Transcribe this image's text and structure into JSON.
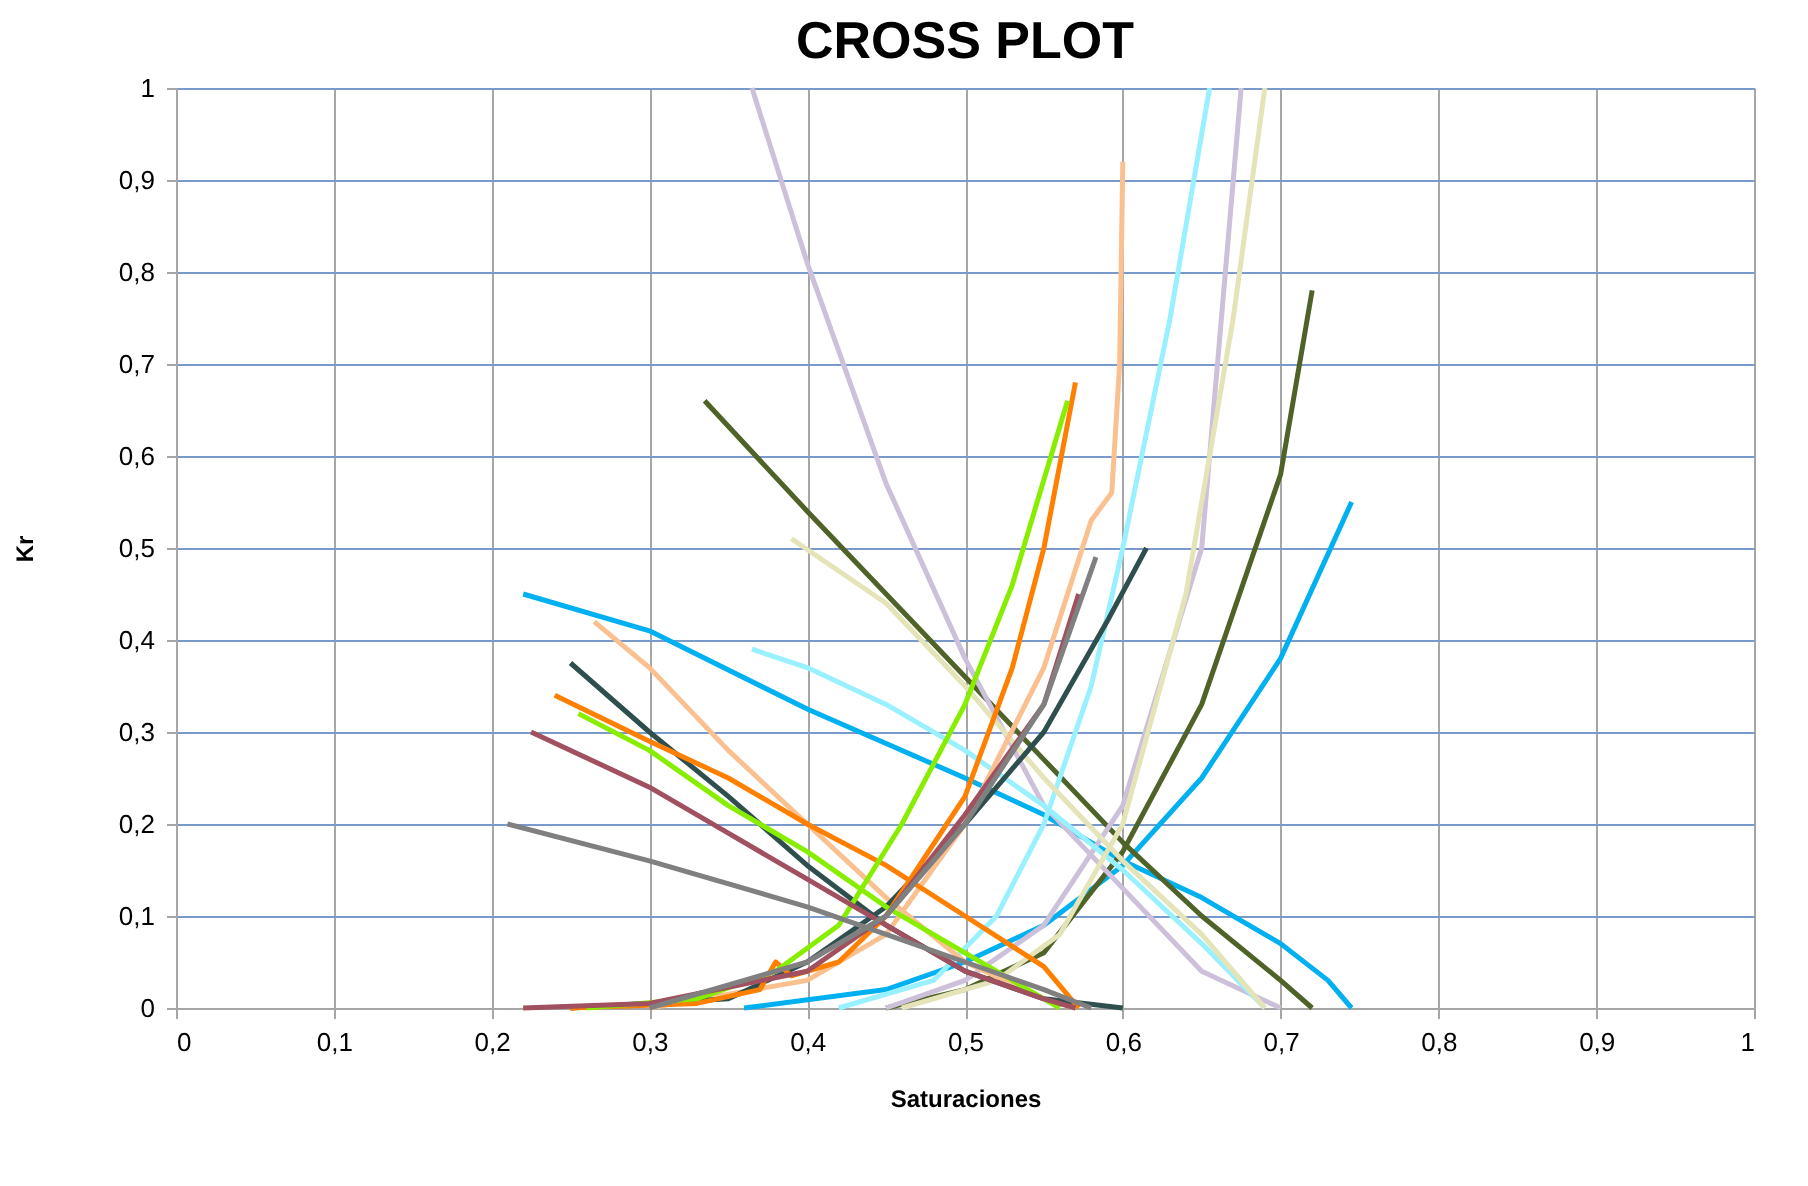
{
  "chart_data": {
    "type": "line",
    "title": "CROSS PLOT",
    "xlabel": "Saturaciones",
    "ylabel": "Kr",
    "grid": true,
    "legend": false,
    "marker": "none",
    "line_style": "solid",
    "xlim": [
      0,
      1
    ],
    "ylim": [
      0,
      1
    ],
    "xticks": [
      0,
      {
        "value": 0.1,
        "label": "0,1"
      },
      {
        "value": 0.2,
        "label": "0,2"
      },
      {
        "value": 0.3,
        "label": "0,3"
      },
      {
        "value": 0.4,
        "label": "0,4"
      },
      {
        "value": 0.5,
        "label": "0,5"
      },
      {
        "value": 0.6,
        "label": "0,6"
      },
      {
        "value": 0.7,
        "label": "0,7"
      },
      {
        "value": 0.8,
        "label": "0,8"
      },
      {
        "value": 0.9,
        "label": "0,9"
      },
      1
    ],
    "yticks": [
      0,
      {
        "value": 0.1,
        "label": "0,1"
      },
      {
        "value": 0.2,
        "label": "0,2"
      },
      {
        "value": 0.3,
        "label": "0,3"
      },
      {
        "value": 0.4,
        "label": "0,4"
      },
      {
        "value": 0.5,
        "label": "0,5"
      },
      {
        "value": 0.6,
        "label": "0,6"
      },
      {
        "value": 0.7,
        "label": "0,7"
      },
      {
        "value": 0.8,
        "label": "0,8"
      },
      {
        "value": 0.9,
        "label": "0,9"
      },
      1
    ],
    "series": [
      {
        "color": "#00b0f0",
        "x": [
          0.22,
          0.3,
          0.4,
          0.5,
          0.55,
          0.6,
          0.65,
          0.7,
          0.73,
          0.745
        ],
        "values": [
          0.45,
          0.41,
          0.325,
          0.25,
          0.21,
          0.16,
          0.12,
          0.07,
          0.03,
          0
        ]
      },
      {
        "color": "#00b0f0",
        "x": [
          0.36,
          0.45,
          0.5,
          0.55,
          0.6,
          0.65,
          0.7,
          0.745
        ],
        "values": [
          0,
          0.02,
          0.05,
          0.09,
          0.155,
          0.25,
          0.38,
          0.55
        ]
      },
      {
        "color": "#4f6228",
        "x": [
          0.335,
          0.4,
          0.45,
          0.5,
          0.55,
          0.6,
          0.65,
          0.7,
          0.72
        ],
        "values": [
          0.66,
          0.54,
          0.45,
          0.36,
          0.27,
          0.18,
          0.1,
          0.03,
          0
        ]
      },
      {
        "color": "#4f6228",
        "x": [
          0.45,
          0.5,
          0.55,
          0.6,
          0.65,
          0.7,
          0.72
        ],
        "values": [
          0,
          0.02,
          0.06,
          0.17,
          0.33,
          0.58,
          0.78
        ]
      },
      {
        "color": "#ccc0da",
        "x": [
          0.365,
          0.4,
          0.45,
          0.5,
          0.55,
          0.6,
          0.65,
          0.7
        ],
        "values": [
          1,
          0.81,
          0.57,
          0.38,
          0.22,
          0.13,
          0.04,
          0
        ]
      },
      {
        "color": "#ccc0da",
        "x": [
          0.45,
          0.5,
          0.55,
          0.6,
          0.65,
          0.675
        ],
        "values": [
          0,
          0.03,
          0.09,
          0.22,
          0.5,
          1
        ]
      },
      {
        "color": "#99f0ff",
        "x": [
          0.365,
          0.4,
          0.45,
          0.5,
          0.55,
          0.6,
          0.65,
          0.69
        ],
        "values": [
          0.39,
          0.37,
          0.33,
          0.28,
          0.22,
          0.15,
          0.07,
          0
        ]
      },
      {
        "color": "#99f0ff",
        "x": [
          0.42,
          0.48,
          0.52,
          0.55,
          0.58,
          0.6,
          0.63,
          0.655
        ],
        "values": [
          0,
          0.03,
          0.1,
          0.2,
          0.35,
          0.5,
          0.75,
          1
        ]
      },
      {
        "color": "#e4e4b8",
        "x": [
          0.39,
          0.45,
          0.5,
          0.55,
          0.6,
          0.65,
          0.69
        ],
        "values": [
          0.51,
          0.44,
          0.35,
          0.25,
          0.16,
          0.08,
          0
        ]
      },
      {
        "color": "#e4e4b8",
        "x": [
          0.46,
          0.52,
          0.56,
          0.6,
          0.64,
          0.67,
          0.69
        ],
        "values": [
          0,
          0.03,
          0.08,
          0.2,
          0.45,
          0.75,
          1
        ]
      },
      {
        "color": "#fac090",
        "x": [
          0.265,
          0.3,
          0.35,
          0.4,
          0.45,
          0.5,
          0.55,
          0.57
        ],
        "values": [
          0.42,
          0.37,
          0.28,
          0.2,
          0.12,
          0.05,
          0.01,
          0
        ]
      },
      {
        "color": "#fac090",
        "x": [
          0.3,
          0.4,
          0.45,
          0.5,
          0.55,
          0.58,
          0.593,
          0.598,
          0.6
        ],
        "values": [
          0,
          0.03,
          0.08,
          0.2,
          0.37,
          0.53,
          0.56,
          0.7,
          0.92
        ]
      },
      {
        "color": "#2f4f4f",
        "x": [
          0.25,
          0.3,
          0.35,
          0.4,
          0.45,
          0.5,
          0.55,
          0.6
        ],
        "values": [
          0.375,
          0.3,
          0.23,
          0.155,
          0.09,
          0.04,
          0.01,
          0
        ]
      },
      {
        "color": "#2f4f4f",
        "x": [
          0.25,
          0.35,
          0.4,
          0.45,
          0.5,
          0.55,
          0.59,
          0.615
        ],
        "values": [
          0,
          0.01,
          0.05,
          0.11,
          0.2,
          0.3,
          0.42,
          0.5
        ]
      },
      {
        "color": "#ff8000",
        "x": [
          0.24,
          0.3,
          0.35,
          0.4,
          0.45,
          0.5,
          0.55,
          0.572
        ],
        "values": [
          0.34,
          0.29,
          0.25,
          0.2,
          0.155,
          0.1,
          0.045,
          0
        ]
      },
      {
        "color": "#ff8000",
        "x": [
          0.25,
          0.33,
          0.37,
          0.38,
          0.39,
          0.42,
          0.45,
          0.5,
          0.53,
          0.55,
          0.57
        ],
        "values": [
          0,
          0.005,
          0.02,
          0.05,
          0.035,
          0.05,
          0.1,
          0.23,
          0.37,
          0.5,
          0.68
        ]
      },
      {
        "color": "#88ee00",
        "x": [
          0.255,
          0.3,
          0.35,
          0.4,
          0.45,
          0.5,
          0.55,
          0.56
        ],
        "values": [
          0.32,
          0.28,
          0.22,
          0.17,
          0.11,
          0.06,
          0.01,
          0
        ]
      },
      {
        "color": "#88ee00",
        "x": [
          0.26,
          0.33,
          0.38,
          0.42,
          0.46,
          0.5,
          0.53,
          0.565
        ],
        "values": [
          0,
          0.01,
          0.04,
          0.09,
          0.2,
          0.33,
          0.46,
          0.66
        ]
      },
      {
        "color": "#a0505e",
        "x": [
          0.225,
          0.3,
          0.35,
          0.4,
          0.45,
          0.5,
          0.55,
          0.57
        ],
        "values": [
          0.3,
          0.24,
          0.19,
          0.14,
          0.09,
          0.04,
          0.01,
          0
        ]
      },
      {
        "color": "#a0505e",
        "x": [
          0.22,
          0.3,
          0.4,
          0.45,
          0.5,
          0.55,
          0.572
        ],
        "values": [
          0,
          0.005,
          0.04,
          0.1,
          0.21,
          0.33,
          0.45
        ]
      },
      {
        "color": "#808080",
        "x": [
          0.21,
          0.3,
          0.4,
          0.45,
          0.5,
          0.55,
          0.58
        ],
        "values": [
          0.2,
          0.16,
          0.11,
          0.08,
          0.05,
          0.02,
          0
        ]
      },
      {
        "color": "#808080",
        "x": [
          0.3,
          0.4,
          0.45,
          0.5,
          0.55,
          0.583
        ],
        "values": [
          0,
          0.05,
          0.1,
          0.2,
          0.33,
          0.49
        ]
      }
    ]
  }
}
